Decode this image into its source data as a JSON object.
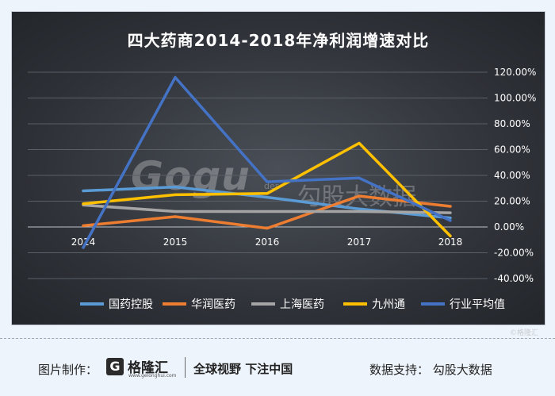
{
  "chart_data": {
    "type": "line",
    "title": "四大药商2014-2018年净利润增速对比",
    "categories": [
      "2014",
      "2015",
      "2016",
      "2017",
      "2018"
    ],
    "y_ticks": [
      "120.00%",
      "100.00%",
      "80.00%",
      "60.00%",
      "40.00%",
      "20.00%",
      "0.00%",
      "-20.00%",
      "-40.00%"
    ],
    "ylim": [
      -40,
      120
    ],
    "grid": true,
    "legend_position": "bottom",
    "series": [
      {
        "name": "国药控股",
        "color": "#5b9bd5",
        "values": [
          28,
          31,
          23,
          14,
          7
        ]
      },
      {
        "name": "华润医药",
        "color": "#ed7d31",
        "values": [
          1,
          8,
          -1,
          24,
          16
        ]
      },
      {
        "name": "上海医药",
        "color": "#a5a5a5",
        "values": [
          17,
          12,
          12,
          12,
          11
        ]
      },
      {
        "name": "九州通",
        "color": "#ffc000",
        "values": [
          18,
          25,
          26,
          65,
          -7
        ]
      },
      {
        "name": "行业平均值",
        "color": "#4472c4",
        "values": [
          -16,
          116,
          35,
          38,
          5
        ]
      }
    ]
  },
  "watermark": {
    "brand": "Gogu",
    "sub": "des",
    "cn": "勾股大数据"
  },
  "copyright": "©格隆汇",
  "footer": {
    "credit_label": "图片制作：",
    "logo_glyph": "G",
    "logo_name": "格隆汇",
    "logo_url": "www.gelonghui.com",
    "slogan": "全球视野 下注中国",
    "support": "数据支持：  勾股大数据"
  }
}
